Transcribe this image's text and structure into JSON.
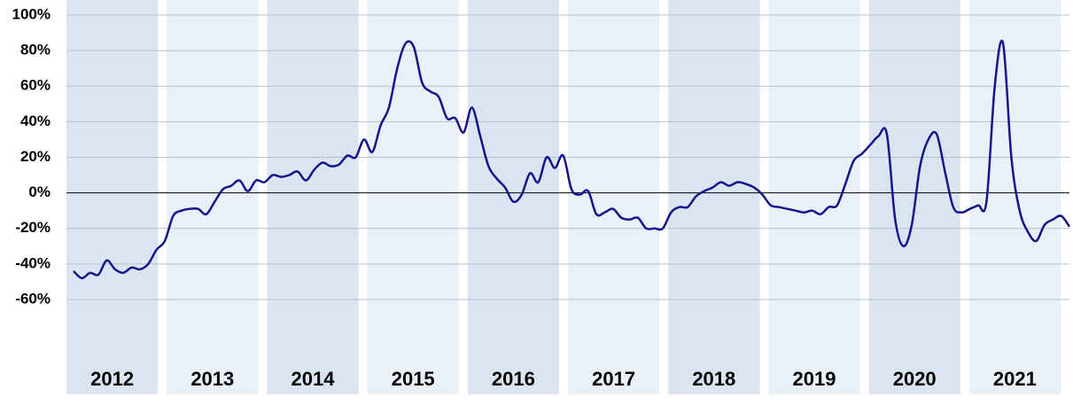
{
  "chart_data": {
    "type": "line",
    "year_bands": [
      "2012",
      "2013",
      "2014",
      "2015",
      "2016",
      "2017",
      "2018",
      "2019",
      "2020",
      "2021"
    ],
    "band_colors": [
      "#dbe5f1",
      "#eaf0f8"
    ],
    "series": [
      {
        "color": "#14148c",
        "values": [
          -44,
          -48,
          -45,
          -46,
          -38,
          -43,
          -45,
          -42,
          -43,
          -40,
          -32,
          -27,
          -13,
          -10,
          -9,
          -9,
          -12,
          -5,
          2,
          4,
          7,
          1,
          7,
          6,
          10,
          9,
          10,
          12,
          7,
          13,
          17,
          15,
          16,
          21,
          20,
          30,
          23,
          38,
          48,
          70,
          84,
          82,
          62,
          57,
          54,
          42,
          42,
          34,
          48,
          32,
          15,
          8,
          3,
          -5,
          -1,
          11,
          6,
          20,
          14,
          21,
          2,
          -1,
          1,
          -12,
          -11,
          -9,
          -14,
          -15,
          -14,
          -20,
          -20,
          -20,
          -11,
          -8,
          -8,
          -2,
          1,
          3,
          6,
          4,
          6,
          5,
          3,
          -1,
          -7,
          -8,
          -9,
          -10,
          -11,
          -10,
          -12,
          -8,
          -7,
          5,
          18,
          22,
          27,
          32,
          33,
          -15,
          -30,
          -18,
          15,
          30,
          33,
          12,
          -8,
          -11,
          -9,
          -7,
          -5,
          60,
          84,
          20,
          -10,
          -22,
          -27,
          -18,
          -15,
          -13,
          -19
        ]
      }
    ],
    "ylim": [
      -60,
      100
    ],
    "yticks": [
      {
        "value": 100,
        "label": "100%"
      },
      {
        "value": 80,
        "label": "80%"
      },
      {
        "value": 60,
        "label": "60%"
      },
      {
        "value": 40,
        "label": "40%"
      },
      {
        "value": 20,
        "label": "20%"
      },
      {
        "value": 0,
        "label": "0%"
      },
      {
        "value": -20,
        "label": "-20%"
      },
      {
        "value": -40,
        "label": "-40%"
      },
      {
        "value": -60,
        "label": "-60%"
      }
    ],
    "grid": true
  }
}
